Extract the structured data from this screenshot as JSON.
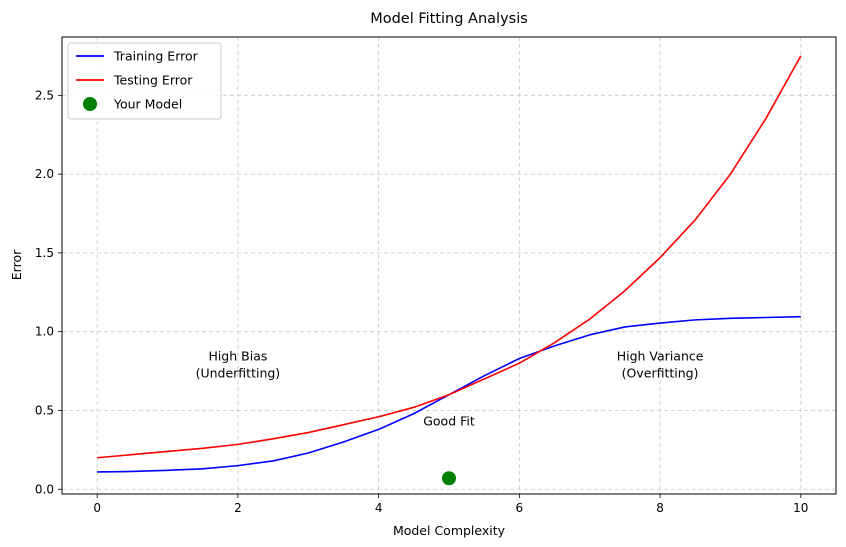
{
  "chart_data": {
    "type": "line",
    "title": "Model Fitting Analysis",
    "xlabel": "Model Complexity",
    "ylabel": "Error",
    "xlim": [
      -0.5,
      10.5
    ],
    "ylim": [
      -0.03,
      2.87
    ],
    "xticks": [
      0,
      2,
      4,
      6,
      8,
      10
    ],
    "yticks": [
      0.0,
      0.5,
      1.0,
      1.5,
      2.0,
      2.5
    ],
    "xtick_labels": [
      "0",
      "2",
      "4",
      "6",
      "8",
      "10"
    ],
    "ytick_labels": [
      "0.0",
      "0.5",
      "1.0",
      "1.5",
      "2.0",
      "2.5"
    ],
    "grid": true,
    "legend_position": "upper-left",
    "series": [
      {
        "name": "Training Error",
        "color": "#0000ff",
        "x": [
          0,
          0.5,
          1,
          1.5,
          2,
          2.5,
          3,
          3.5,
          4,
          4.5,
          5,
          5.5,
          6,
          6.5,
          7,
          7.5,
          8,
          8.5,
          9,
          9.5,
          10
        ],
        "y": [
          0.11,
          0.113,
          0.12,
          0.13,
          0.15,
          0.18,
          0.23,
          0.3,
          0.38,
          0.48,
          0.6,
          0.72,
          0.83,
          0.91,
          0.98,
          1.03,
          1.055,
          1.075,
          1.085,
          1.09,
          1.095
        ]
      },
      {
        "name": "Testing Error",
        "color": "#ff0000",
        "x": [
          0,
          0.5,
          1,
          1.5,
          2,
          2.5,
          3,
          3.5,
          4,
          4.5,
          5,
          5.5,
          6,
          6.5,
          7,
          7.5,
          8,
          8.5,
          9,
          9.5,
          10
        ],
        "y": [
          0.2,
          0.22,
          0.24,
          0.26,
          0.285,
          0.32,
          0.36,
          0.41,
          0.46,
          0.52,
          0.6,
          0.7,
          0.8,
          0.93,
          1.08,
          1.26,
          1.47,
          1.71,
          2.0,
          2.35,
          2.75
        ]
      },
      {
        "name": "Your Model",
        "color": "#008000",
        "marker": "circle",
        "x": [
          5
        ],
        "y": [
          0.07
        ]
      }
    ],
    "annotations": [
      {
        "lines": [
          "High Bias",
          "(Underfitting)"
        ],
        "x": 2,
        "y": 0.79
      },
      {
        "lines": [
          "Good Fit"
        ],
        "x": 5,
        "y": 0.43
      },
      {
        "lines": [
          "High Variance",
          "(Overfitting)"
        ],
        "x": 8,
        "y": 0.79
      }
    ]
  }
}
